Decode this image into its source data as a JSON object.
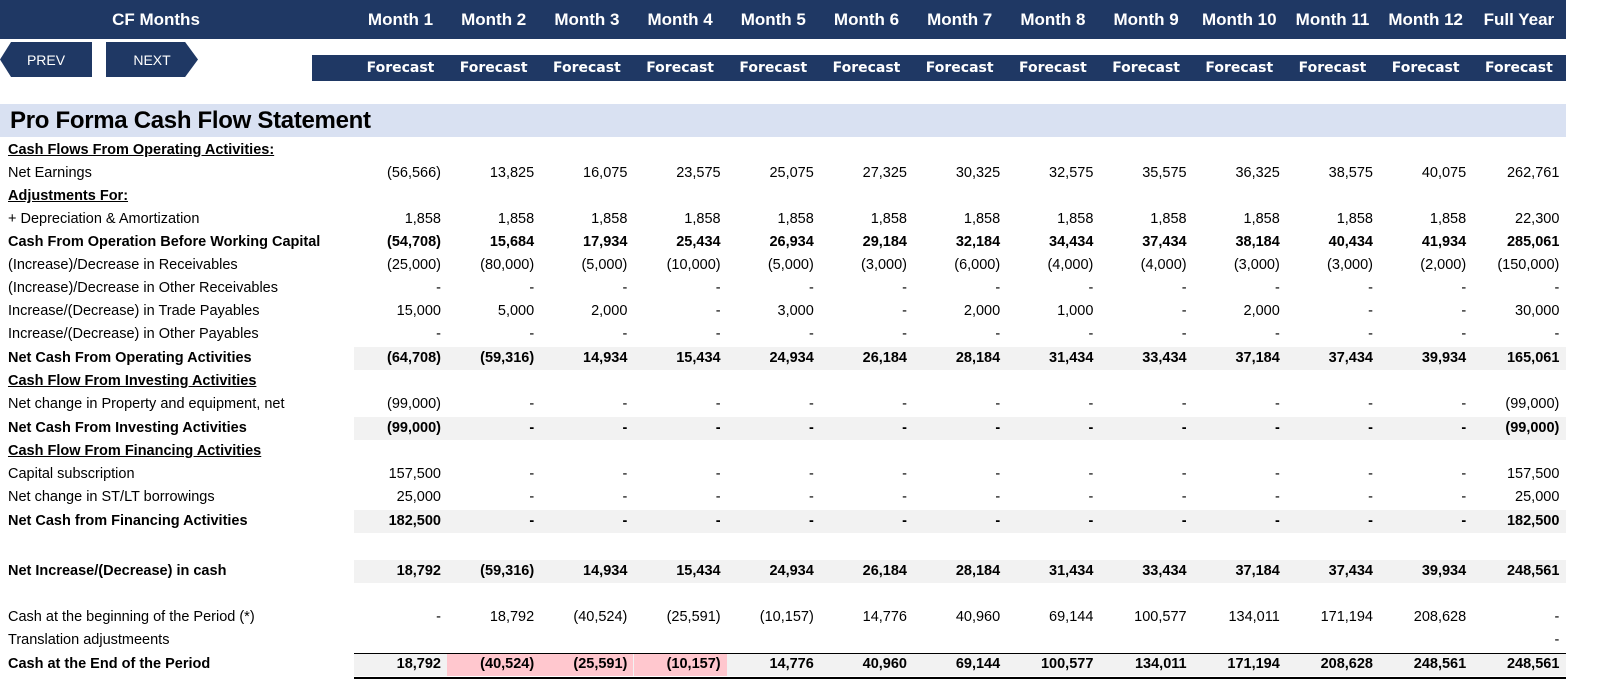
{
  "header": {
    "title": "CF Months",
    "months": [
      "Month 1",
      "Month 2",
      "Month 3",
      "Month 4",
      "Month 5",
      "Month 6",
      "Month 7",
      "Month 8",
      "Month 9",
      "Month 10",
      "Month 11",
      "Month 12",
      "Full Year"
    ],
    "subheaders": [
      "Forecast",
      "Forecast",
      "Forecast",
      "Forecast",
      "Forecast",
      "Forecast",
      "Forecast",
      "Forecast",
      "Forecast",
      "Forecast",
      "Forecast",
      "Forecast",
      "Forecast"
    ]
  },
  "nav": {
    "prev_label": "PREV",
    "next_label": "NEXT"
  },
  "statement_title": "Pro Forma Cash Flow Statement",
  "rows": [
    {
      "label": "Cash Flows From Operating Activities:",
      "style": "section",
      "values": []
    },
    {
      "label": "Net Earnings",
      "style": "normal",
      "values": [
        "(56,566)",
        "13,825",
        "16,075",
        "23,575",
        "25,075",
        "27,325",
        "30,325",
        "32,575",
        "35,575",
        "36,325",
        "38,575",
        "40,075",
        "262,761"
      ]
    },
    {
      "label": "Adjustments For:",
      "style": "section",
      "values": []
    },
    {
      "label": " + Depreciation & Amortization",
      "style": "normal",
      "values": [
        "1,858",
        "1,858",
        "1,858",
        "1,858",
        "1,858",
        "1,858",
        "1,858",
        "1,858",
        "1,858",
        "1,858",
        "1,858",
        "1,858",
        "22,300"
      ]
    },
    {
      "label": "Cash From Operation Before Working Capital",
      "style": "bold",
      "values": [
        "(54,708)",
        "15,684",
        "17,934",
        "25,434",
        "26,934",
        "29,184",
        "32,184",
        "34,434",
        "37,434",
        "38,184",
        "40,434",
        "41,934",
        "285,061"
      ]
    },
    {
      "label": "(Increase)/Decrease in Receivables",
      "style": "normal",
      "values": [
        "(25,000)",
        "(80,000)",
        "(5,000)",
        "(10,000)",
        "(5,000)",
        "(3,000)",
        "(6,000)",
        "(4,000)",
        "(4,000)",
        "(3,000)",
        "(3,000)",
        "(2,000)",
        "(150,000)"
      ]
    },
    {
      "label": "(Increase)/Decrease in Other Receivables",
      "style": "normal",
      "values": [
        "-",
        "-",
        "-",
        "-",
        "-",
        "-",
        "-",
        "-",
        "-",
        "-",
        "-",
        "-",
        "-"
      ]
    },
    {
      "label": "Increase/(Decrease) in Trade Payables",
      "style": "normal",
      "values": [
        "15,000",
        "5,000",
        "2,000",
        "-",
        "3,000",
        "-",
        "2,000",
        "1,000",
        "-",
        "2,000",
        "-",
        "-",
        "30,000"
      ]
    },
    {
      "label": "Increase/(Decrease) in Other Payables",
      "style": "normal",
      "values": [
        "-",
        "-",
        "-",
        "-",
        "-",
        "-",
        "-",
        "-",
        "-",
        "-",
        "-",
        "-",
        "-"
      ]
    },
    {
      "label": "Net Cash From Operating Activities",
      "style": "total",
      "values": [
        "(64,708)",
        "(59,316)",
        "14,934",
        "15,434",
        "24,934",
        "26,184",
        "28,184",
        "31,434",
        "33,434",
        "37,184",
        "37,434",
        "39,934",
        "165,061"
      ]
    },
    {
      "label": "Cash Flow From Investing Activities",
      "style": "section",
      "values": []
    },
    {
      "label": "Net change in Property and equipment, net",
      "style": "normal",
      "values": [
        "(99,000)",
        "-",
        "-",
        "-",
        "-",
        "-",
        "-",
        "-",
        "-",
        "-",
        "-",
        "-",
        "(99,000)"
      ]
    },
    {
      "label": "Net Cash From Investing Activities",
      "style": "total",
      "values": [
        "(99,000)",
        "-",
        "-",
        "-",
        "-",
        "-",
        "-",
        "-",
        "-",
        "-",
        "-",
        "-",
        "(99,000)"
      ]
    },
    {
      "label": "Cash Flow From Financing Activities",
      "style": "section",
      "values": []
    },
    {
      "label": "Capital subscription",
      "style": "normal",
      "values": [
        "157,500",
        "-",
        "-",
        "-",
        "-",
        "-",
        "-",
        "-",
        "-",
        "-",
        "-",
        "-",
        "157,500"
      ]
    },
    {
      "label": "Net change in ST/LT borrowings",
      "style": "normal",
      "values": [
        "25,000",
        "-",
        "-",
        "-",
        "-",
        "-",
        "-",
        "-",
        "-",
        "-",
        "-",
        "-",
        "25,000"
      ]
    },
    {
      "label": "Net Cash from Financing Activities",
      "style": "total",
      "values": [
        "182,500",
        "-",
        "-",
        "-",
        "-",
        "-",
        "-",
        "-",
        "-",
        "-",
        "-",
        "-",
        "182,500"
      ]
    },
    {
      "label": "Net Increase/(Decrease) in cash",
      "style": "total",
      "values": [
        "18,792",
        "(59,316)",
        "14,934",
        "15,434",
        "24,934",
        "26,184",
        "28,184",
        "31,434",
        "33,434",
        "37,184",
        "37,434",
        "39,934",
        "248,561"
      ]
    },
    {
      "label": "Cash at the beginning of the Period (*)",
      "style": "normal",
      "values": [
        "-",
        "18,792",
        "(40,524)",
        "(25,591)",
        "(10,157)",
        "14,776",
        "40,960",
        "69,144",
        "100,577",
        "134,011",
        "171,194",
        "208,628",
        "-"
      ]
    },
    {
      "label": "Translation adjustmeents",
      "style": "normal",
      "values": [
        "",
        "",
        "",
        "",
        "",
        "",
        "",
        "",
        "",
        "",
        "",
        "",
        "-"
      ]
    },
    {
      "label": "Cash at the End of the Period",
      "style": "total",
      "values": [
        "18,792",
        "(40,524)",
        "(25,591)",
        "(10,157)",
        "14,776",
        "40,960",
        "69,144",
        "100,577",
        "134,011",
        "171,194",
        "208,628",
        "248,561",
        "248,561"
      ],
      "negative_highlight": [
        1,
        2,
        3
      ]
    }
  ],
  "colors": {
    "header_bg": "#1f3864",
    "title_band": "#d9e1f2",
    "total_row_bg": "#f2f2f2",
    "negative_highlight": "#ffc7ce"
  }
}
